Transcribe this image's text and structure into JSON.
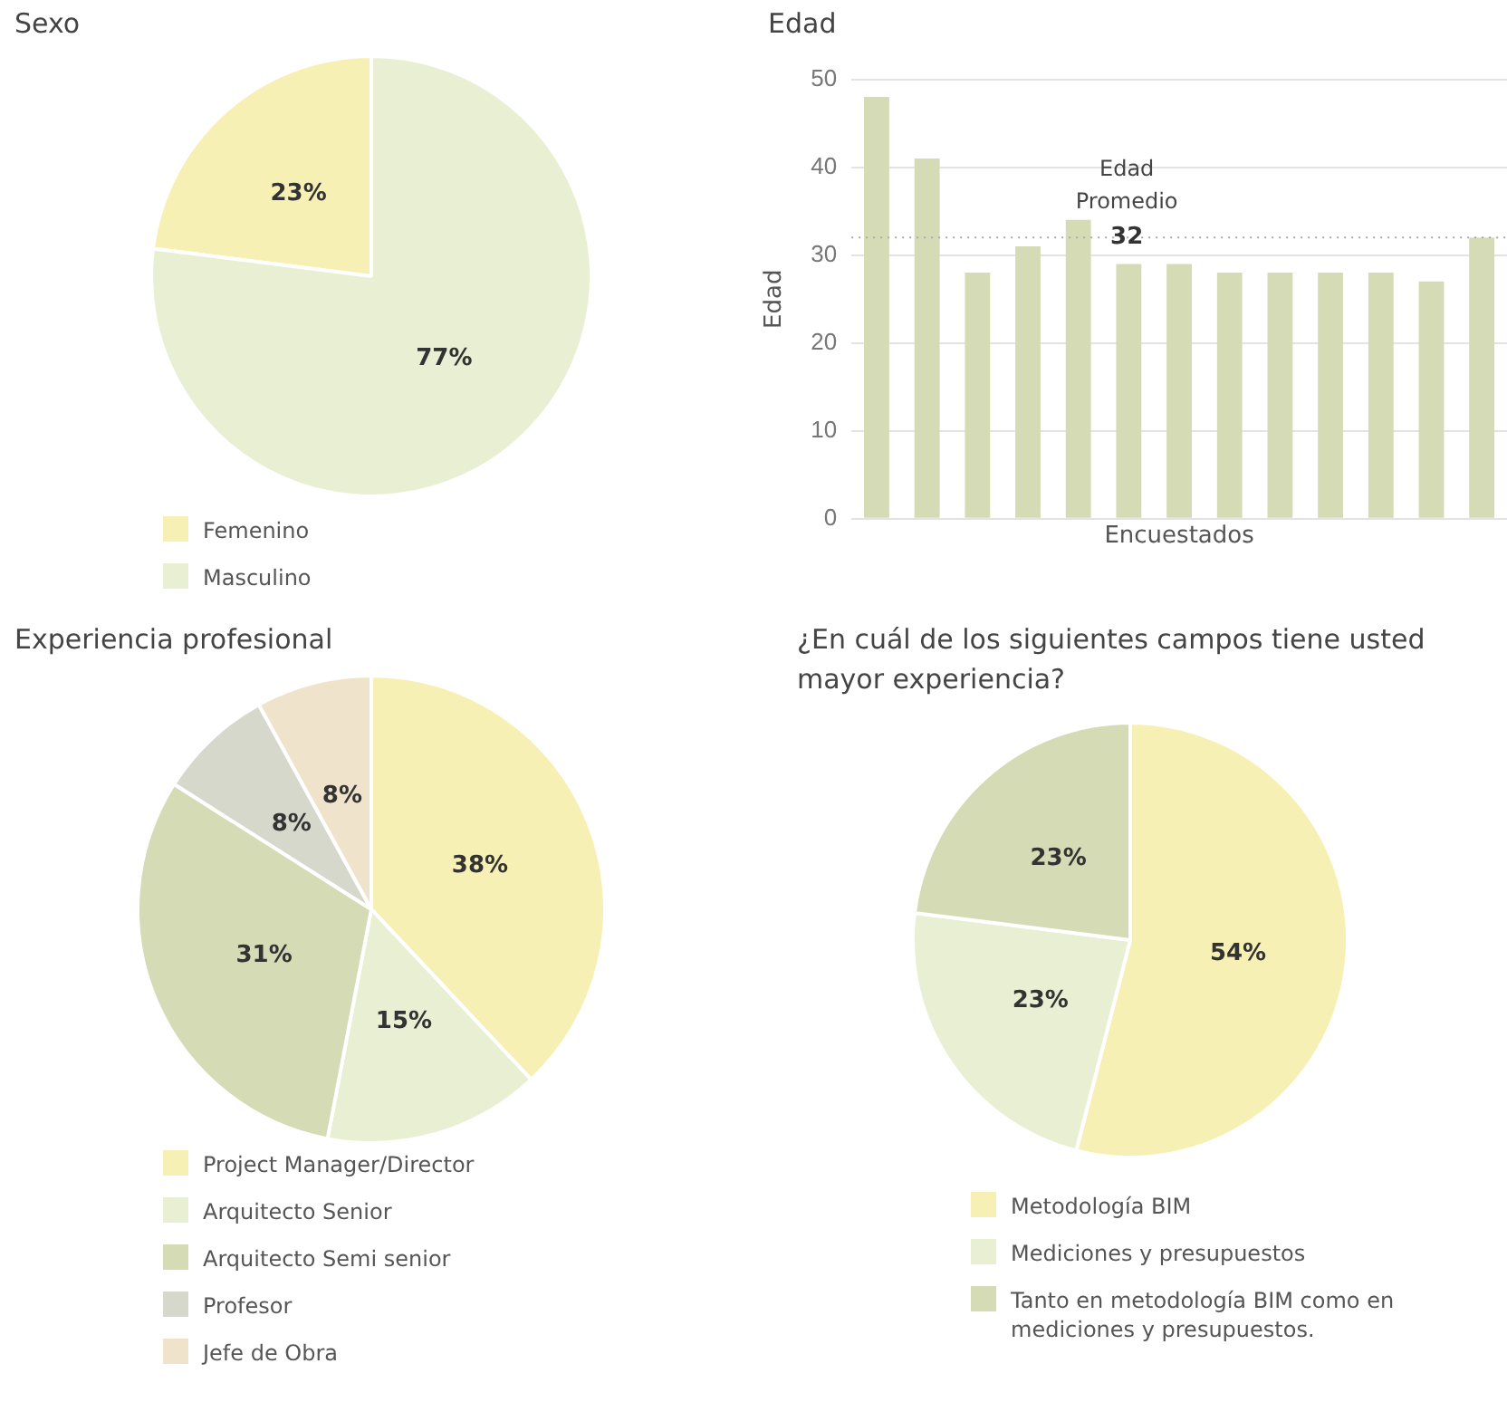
{
  "chart_data": [
    {
      "type": "pie",
      "title": "Sexo",
      "categories": [
        "Femenino",
        "Masculino"
      ],
      "values": [
        23,
        77
      ],
      "colors": [
        "#f7f0b5",
        "#e9efd3"
      ],
      "value_labels": [
        "23%",
        "77%"
      ],
      "legend": "bottom"
    },
    {
      "type": "bar",
      "title": "Edad",
      "ylabel": "Edad",
      "xlabel": "Encuestados",
      "categories": [
        null,
        null,
        null,
        null,
        null,
        null,
        null,
        null,
        null,
        null,
        null,
        null,
        null
      ],
      "values": [
        48,
        41,
        28,
        31,
        34,
        29,
        29,
        28,
        28,
        28,
        28,
        27,
        32
      ],
      "color": "#d5dcb5",
      "ylim": [
        0,
        50
      ],
      "yticks": [
        0,
        10,
        20,
        30,
        40,
        50
      ],
      "grid": "y",
      "ref_lines": [
        {
          "axis": "y",
          "value": 32,
          "label": "Edad Promedio",
          "line_style": "dotted",
          "color": "#aaaaaa"
        }
      ],
      "annotations": [
        {
          "text": "32",
          "y": 32
        }
      ]
    },
    {
      "type": "pie",
      "title": "Experiencia profesional",
      "categories": [
        "Project Manager/Director",
        "Arquitecto Senior",
        "Arquitecto Semi senior",
        "Profesor",
        "Jefe de Obra"
      ],
      "values": [
        38,
        15,
        31,
        8,
        8
      ],
      "colors": [
        "#f7f0b5",
        "#e9efd3",
        "#d4dbb5",
        "#d6d8cc",
        "#efe3cc"
      ],
      "value_labels": [
        "38%",
        "15%",
        "31%",
        "8%",
        "8%"
      ],
      "legend": "bottom"
    },
    {
      "type": "pie",
      "title": "¿En cuál de los siguientes campos tiene usted mayor experiencia?",
      "categories": [
        "Metodología BIM",
        "Mediciones y presupuestos",
        "Tanto en metodología BIM como en mediciones y presupuestos."
      ],
      "values": [
        54,
        23,
        23
      ],
      "colors": [
        "#f7f0b5",
        "#e9efd3",
        "#d4dbb5"
      ],
      "value_labels": [
        "54%",
        "23%",
        "23%"
      ],
      "legend": "bottom"
    }
  ]
}
